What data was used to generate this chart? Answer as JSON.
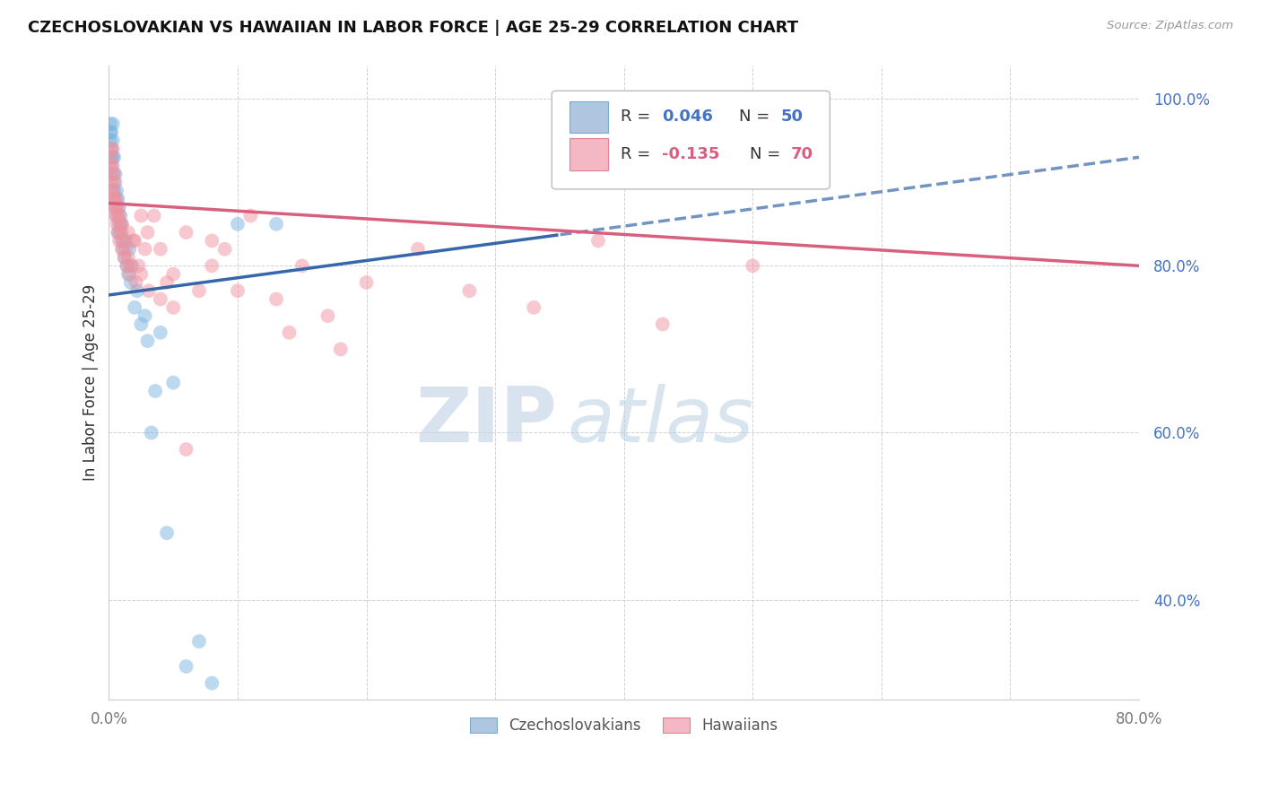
{
  "title": "CZECHOSLOVAKIAN VS HAWAIIAN IN LABOR FORCE | AGE 25-29 CORRELATION CHART",
  "source": "Source: ZipAtlas.com",
  "ylabel": "In Labor Force | Age 25-29",
  "xlim": [
    0.0,
    0.8
  ],
  "ylim": [
    0.28,
    1.04
  ],
  "yticks": [
    0.4,
    0.6,
    0.8,
    1.0
  ],
  "blue_color": "#7ab4e0",
  "pink_color": "#f093a0",
  "blue_line_color": "#3567aa",
  "pink_line_color": "#d95f7f",
  "watermark_zip": "ZIP",
  "watermark_atlas": "atlas",
  "czecho_x": [
    0.001,
    0.001,
    0.001,
    0.002,
    0.002,
    0.002,
    0.002,
    0.003,
    0.003,
    0.003,
    0.003,
    0.004,
    0.004,
    0.004,
    0.005,
    0.005,
    0.005,
    0.006,
    0.006,
    0.007,
    0.007,
    0.008,
    0.008,
    0.009,
    0.009,
    0.01,
    0.01,
    0.011,
    0.012,
    0.013,
    0.014,
    0.015,
    0.016,
    0.017,
    0.018,
    0.02,
    0.022,
    0.025,
    0.028,
    0.03,
    0.033,
    0.036,
    0.04,
    0.045,
    0.05,
    0.06,
    0.07,
    0.08,
    0.1,
    0.13
  ],
  "czecho_y": [
    0.97,
    0.96,
    0.95,
    0.94,
    0.93,
    0.96,
    0.92,
    0.95,
    0.93,
    0.91,
    0.97,
    0.9,
    0.89,
    0.93,
    0.88,
    0.87,
    0.91,
    0.86,
    0.89,
    0.84,
    0.88,
    0.85,
    0.87,
    0.84,
    0.86,
    0.83,
    0.85,
    0.82,
    0.81,
    0.83,
    0.8,
    0.79,
    0.82,
    0.78,
    0.8,
    0.75,
    0.77,
    0.73,
    0.74,
    0.71,
    0.6,
    0.65,
    0.72,
    0.48,
    0.66,
    0.32,
    0.35,
    0.3,
    0.85,
    0.85
  ],
  "hawaii_x": [
    0.001,
    0.001,
    0.002,
    0.002,
    0.003,
    0.003,
    0.003,
    0.004,
    0.004,
    0.004,
    0.005,
    0.005,
    0.006,
    0.006,
    0.007,
    0.007,
    0.008,
    0.008,
    0.009,
    0.01,
    0.01,
    0.011,
    0.012,
    0.013,
    0.014,
    0.015,
    0.016,
    0.017,
    0.019,
    0.021,
    0.023,
    0.025,
    0.028,
    0.031,
    0.035,
    0.04,
    0.045,
    0.05,
    0.06,
    0.07,
    0.08,
    0.09,
    0.11,
    0.13,
    0.15,
    0.17,
    0.2,
    0.24,
    0.28,
    0.33,
    0.38,
    0.43,
    0.5,
    0.001,
    0.002,
    0.003,
    0.005,
    0.007,
    0.01,
    0.015,
    0.02,
    0.025,
    0.03,
    0.04,
    0.05,
    0.06,
    0.08,
    0.1,
    0.14,
    0.18
  ],
  "hawaii_y": [
    0.93,
    0.91,
    0.94,
    0.9,
    0.92,
    0.89,
    0.94,
    0.88,
    0.91,
    0.87,
    0.9,
    0.86,
    0.88,
    0.85,
    0.87,
    0.84,
    0.86,
    0.83,
    0.85,
    0.84,
    0.82,
    0.83,
    0.81,
    0.82,
    0.8,
    0.81,
    0.79,
    0.8,
    0.83,
    0.78,
    0.8,
    0.79,
    0.82,
    0.77,
    0.86,
    0.76,
    0.78,
    0.75,
    0.84,
    0.77,
    0.83,
    0.82,
    0.86,
    0.76,
    0.8,
    0.74,
    0.78,
    0.82,
    0.77,
    0.75,
    0.83,
    0.73,
    0.8,
    0.92,
    0.89,
    0.88,
    0.87,
    0.86,
    0.85,
    0.84,
    0.83,
    0.86,
    0.84,
    0.82,
    0.79,
    0.58,
    0.8,
    0.77,
    0.72,
    0.7
  ]
}
